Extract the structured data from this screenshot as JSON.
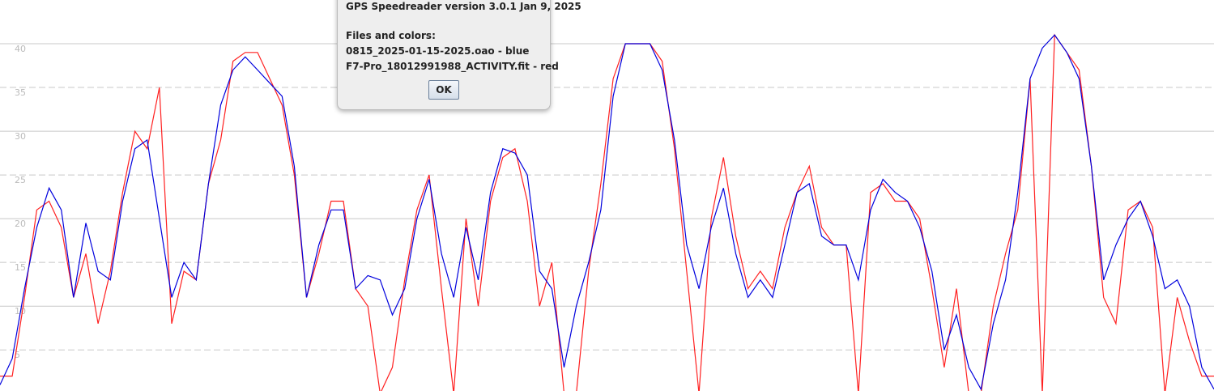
{
  "chart_data": {
    "type": "line",
    "ylim": [
      0.3,
      45
    ],
    "yticks": [
      5,
      10,
      15,
      20,
      25,
      30,
      35,
      40
    ],
    "grid": true,
    "series": [
      {
        "color": "#0000dd",
        "values": [
          1,
          4,
          12,
          19,
          23.5,
          21,
          11,
          19.5,
          14,
          13,
          22,
          28,
          29,
          20,
          11,
          15,
          13,
          24,
          33,
          37,
          38.5,
          37,
          35.5,
          34,
          26,
          11,
          17,
          21,
          21,
          12,
          13.5,
          13,
          9,
          12,
          20,
          24.5,
          16,
          11,
          19,
          13,
          23,
          28,
          27.5,
          25,
          14,
          12,
          3,
          10,
          15,
          21,
          34,
          40,
          40,
          40,
          37,
          29,
          17,
          12,
          19,
          23.5,
          16,
          11,
          13,
          11,
          17,
          23,
          24,
          18,
          17,
          17,
          13,
          21,
          24.5,
          23,
          22,
          19,
          14,
          5,
          9,
          3,
          0.5,
          8,
          13,
          23,
          36,
          39.5,
          41,
          39,
          36,
          26,
          13,
          17,
          20,
          22,
          18,
          12,
          13,
          10,
          3,
          0.5
        ]
      },
      {
        "color": "#ff2020",
        "values": [
          2,
          2,
          11,
          21,
          22,
          19,
          11,
          16,
          8,
          14,
          23,
          30,
          28,
          35,
          8,
          14,
          13,
          24,
          29,
          38,
          39,
          39,
          36,
          33,
          25,
          11,
          16,
          22,
          22,
          12,
          10,
          0,
          3,
          13,
          21,
          25,
          12,
          0,
          20,
          10,
          22,
          27,
          28,
          22,
          10,
          15,
          0,
          0,
          14,
          24,
          36,
          40,
          40,
          40,
          38,
          28,
          14,
          0,
          20,
          27,
          18,
          12,
          14,
          12,
          19,
          23,
          26,
          19,
          17,
          17,
          0,
          23,
          24,
          22,
          22,
          20,
          12,
          3,
          12,
          0,
          0,
          10,
          16,
          21,
          36,
          0,
          41,
          39,
          37,
          26,
          11,
          8,
          21,
          22,
          19,
          0,
          11,
          6,
          2,
          2
        ]
      }
    ]
  },
  "dialog": {
    "title": "GPS Speedreader version 3.0.1 Jan 9, 2025",
    "heading": "Files and colors:",
    "lines": [
      "0815_2025-01-15-2025.oao - blue",
      "F7-Pro_18012991988_ACTIVITY.fit - red"
    ],
    "button": "OK"
  }
}
